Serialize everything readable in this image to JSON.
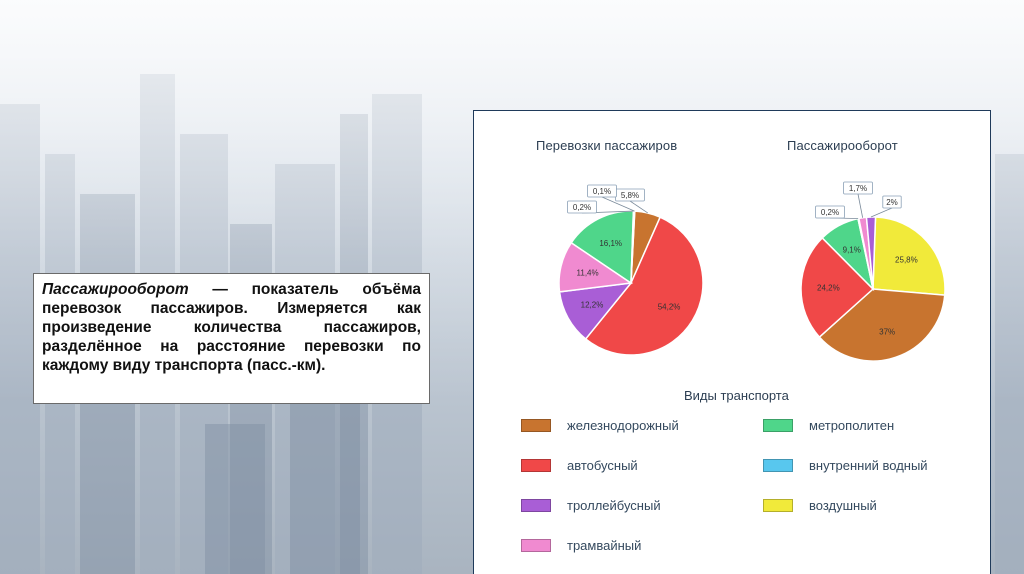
{
  "description": {
    "term": "Пассажирооборот",
    "text": " — показатель объёма перевозок пассажиров. Измеряется как произведение количества пассажиров, разделённое на расстояние перевозки по каждому виду транспорта (пасс.-км)."
  },
  "colors": {
    "rail": "#c8742f",
    "bus": "#f04848",
    "trolley": "#a95ed6",
    "tram": "#f08ad0",
    "metro": "#4fd68a",
    "water": "#58c7ee",
    "air": "#f1ea3a"
  },
  "chart_data": [
    {
      "type": "pie",
      "title": "Перевозки пассажиров",
      "slices": [
        {
          "key": "rail",
          "value": 5.8,
          "label": "5,8%"
        },
        {
          "key": "bus",
          "value": 54.2,
          "label": "54,2%"
        },
        {
          "key": "trolley",
          "value": 12.2,
          "label": "12,2%"
        },
        {
          "key": "tram",
          "value": 11.4,
          "label": "11,4%"
        },
        {
          "key": "metro",
          "value": 16.1,
          "label": "16,1%"
        },
        {
          "key": "water",
          "value": 0.2,
          "label": "0,2%"
        },
        {
          "key": "air",
          "value": 0.1,
          "label": "0,1%"
        }
      ]
    },
    {
      "type": "pie",
      "title": "Пассажирооборот",
      "slices": [
        {
          "key": "air",
          "value": 25.8,
          "label": "25,8%"
        },
        {
          "key": "rail",
          "value": 37,
          "label": "37%"
        },
        {
          "key": "bus",
          "value": 24.2,
          "label": "24,2%"
        },
        {
          "key": "metro",
          "value": 9.1,
          "label": "9,1%"
        },
        {
          "key": "water",
          "value": 0.2,
          "label": "0,2%"
        },
        {
          "key": "tram",
          "value": 1.7,
          "label": "1,7%"
        },
        {
          "key": "trolley",
          "value": 2,
          "label": "2%"
        }
      ]
    }
  ],
  "legend": {
    "title": "Виды транспорта",
    "items": [
      {
        "key": "rail",
        "label": "железнодорожный"
      },
      {
        "key": "metro",
        "label": "метрополитен"
      },
      {
        "key": "bus",
        "label": "автобусный"
      },
      {
        "key": "water",
        "label": "внутренний водный"
      },
      {
        "key": "trolley",
        "label": "троллейбусный"
      },
      {
        "key": "air",
        "label": "воздушный"
      },
      {
        "key": "tram",
        "label": "трамвайный"
      }
    ]
  }
}
